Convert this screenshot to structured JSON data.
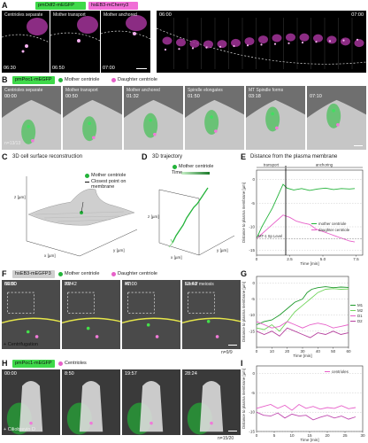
{
  "panels": {
    "A": {
      "label": "A",
      "tags": [
        "pmOdf2-mEGFP",
        "hsEB3-mCherry3"
      ],
      "captions": [
        "Centrioles separate",
        "Mother transport",
        "Mother anchored"
      ],
      "times": [
        "06:30",
        "06:50",
        "07:00"
      ],
      "strip_times": [
        "06:00",
        "07:00"
      ]
    },
    "B": {
      "label": "B",
      "tag": "pmPoc1-mEGFP",
      "legend": [
        "Mother centriole",
        "Daughter centriole"
      ],
      "captions": [
        "Centrioles separate",
        "Mother transport",
        "Mother anchored",
        "Spindle elongates",
        "MT Spindle forms"
      ],
      "times": [
        "00:00",
        "00:50",
        "01:32",
        "01:50",
        "03:18",
        "07:10"
      ],
      "n": "n=13/13"
    },
    "C": {
      "label": "C",
      "title": "3D cell surface reconstruction",
      "legend": [
        "Mother centriole",
        "Closest point on membrane"
      ],
      "axes": [
        "z [µm]",
        "x [µm]",
        "y [µm]"
      ]
    },
    "D": {
      "label": "D",
      "title": "3D trajectory",
      "legend": [
        "Mother centriole"
      ],
      "colorbar": "Time",
      "axes": [
        "z [µm]",
        "x [µm]",
        "y [µm]"
      ]
    },
    "E": {
      "label": "E",
      "title": "Distance from the plasma membrane",
      "phase_labels": [
        "transport",
        "anchoring"
      ],
      "ylabel": "Distance to plasma membrane [µm]",
      "xlabel": "Time [min]",
      "legend": [
        "mother centriole",
        "daughter centriole"
      ],
      "annotation": "MT-1 Sp Level",
      "chart_data": {
        "type": "line",
        "xlim": [
          0,
          8
        ],
        "ylim": [
          -16,
          2
        ],
        "xticks": [
          "0",
          "2.5",
          "5.0",
          "7.5"
        ],
        "yticks": [
          "0",
          "-5",
          "-10",
          "-15"
        ],
        "series": [
          {
            "name": "mother centriole",
            "x": [
              0,
              0.4,
              0.8,
              1.2,
              1.6,
              2.0,
              2.3,
              2.8,
              3.4,
              4.0,
              4.6,
              5.2,
              5.8,
              6.4,
              7.0,
              7.4
            ],
            "y": [
              -12.5,
              -10,
              -8,
              -6,
              -3.5,
              -1,
              -1.8,
              -2.2,
              -1.9,
              -2.3,
              -2.0,
              -1.8,
              -2.1,
              -1.9,
              -2.0,
              -1.9
            ]
          },
          {
            "name": "daughter centriole",
            "x": [
              0,
              0.4,
              0.8,
              1.2,
              1.6,
              2.0,
              2.5,
              3.0,
              3.5,
              4.0,
              4.5,
              5.0,
              5.5,
              6.0,
              6.5,
              7.0,
              7.4
            ],
            "y": [
              -12.5,
              -11.5,
              -10.5,
              -9.5,
              -8.5,
              -7.5,
              -8,
              -8.8,
              -9.2,
              -9.5,
              -10.5,
              -11,
              -11.5,
              -12,
              -12.5,
              -13,
              -13.2
            ]
          }
        ]
      }
    },
    "F": {
      "label": "F",
      "tag": "hsEB3-mEGFP3",
      "legend": [
        "Mother centriole",
        "Daughter centriole"
      ],
      "captions": [
        "NEBD",
        "PM",
        "MII",
        "End of meiosis"
      ],
      "times": [
        "00:00",
        "32:42",
        "47:00",
        "52:42"
      ],
      "side_label": "+ Centrifugation",
      "n": "n=9/9"
    },
    "G": {
      "label": "G",
      "ylabel": "Distance to plasma membrane [µm]",
      "xlabel": "Time [min]",
      "legend": [
        "M1",
        "M2",
        "D1",
        "D2"
      ],
      "chart_data": {
        "type": "line",
        "xlim": [
          0,
          60
        ],
        "ylim": [
          -20,
          2
        ],
        "xticks": [
          "0",
          "10",
          "20",
          "30",
          "40",
          "50",
          "60"
        ],
        "yticks": [
          "0",
          "-5",
          "-10",
          "-15"
        ],
        "series": [
          {
            "name": "M1",
            "x": [
              0,
              5,
              10,
              15,
              20,
              25,
              30,
              33,
              36,
              40,
              45,
              50,
              55,
              60
            ],
            "y": [
              -13,
              -12,
              -11.5,
              -10,
              -8,
              -6,
              -5,
              -3,
              -2,
              -1.5,
              -1.2,
              -1.5,
              -1.3,
              -1.4
            ]
          },
          {
            "name": "M2",
            "x": [
              0,
              5,
              10,
              15,
              20,
              25,
              30,
              35,
              40,
              45,
              50,
              55,
              60
            ],
            "y": [
              -14,
              -14.5,
              -13,
              -15,
              -12,
              -9,
              -7,
              -5,
              -3,
              -2,
              -1.8,
              -2,
              -1.9
            ]
          },
          {
            "name": "D1",
            "x": [
              0,
              5,
              10,
              15,
              20,
              25,
              30,
              35,
              40,
              45,
              50,
              55,
              60
            ],
            "y": [
              -12,
              -13,
              -14,
              -13.5,
              -12,
              -13,
              -14,
              -13,
              -12.5,
              -13,
              -14,
              -13.5,
              -13
            ]
          },
          {
            "name": "D2",
            "x": [
              0,
              5,
              10,
              15,
              20,
              25,
              30,
              35,
              40,
              45,
              50,
              55,
              60
            ],
            "y": [
              -15,
              -16,
              -15,
              -16.5,
              -14,
              -15,
              -16,
              -17,
              -15.5,
              -16,
              -15,
              -16,
              -15.5
            ]
          }
        ]
      }
    },
    "H": {
      "label": "H",
      "tag": "pmPoc1-mEGFP",
      "legend": [
        "Centrioles"
      ],
      "times": [
        "00:00",
        "8:50",
        "19:57",
        "28:24"
      ],
      "side_label": "+ Ciliobrevin D",
      "n": "n=15/20"
    },
    "I": {
      "label": "I",
      "ylabel": "Distance to plasma membrane [µm]",
      "xlabel": "Time [min]",
      "legend": [
        "centrioles"
      ],
      "chart_data": {
        "type": "line",
        "xlim": [
          0,
          30
        ],
        "ylim": [
          -15,
          2
        ],
        "xticks": [
          "0",
          "5",
          "10",
          "15",
          "20",
          "25",
          "30"
        ],
        "yticks": [
          "0",
          "-5",
          "-10",
          "-15"
        ],
        "series": [
          {
            "name": "centriole 1",
            "x": [
              0,
              2,
              4,
              6,
              8,
              10,
              12,
              14,
              16,
              18,
              20,
              22,
              24,
              26,
              28
            ],
            "y": [
              -9,
              -8.5,
              -8,
              -9,
              -8.2,
              -9.5,
              -8,
              -9,
              -8.5,
              -9.2,
              -8.8,
              -9,
              -8.3,
              -9.1,
              -8.8
            ]
          },
          {
            "name": "centriole 2",
            "x": [
              0,
              2,
              4,
              6,
              8,
              10,
              12,
              14,
              16,
              18,
              20,
              22,
              24,
              26,
              28
            ],
            "y": [
              -10,
              -10.8,
              -11,
              -10.2,
              -11.5,
              -10.5,
              -11,
              -10.8,
              -12,
              -11.3,
              -10.8,
              -11.5,
              -11,
              -11.8,
              -11.2
            ]
          }
        ]
      }
    }
  },
  "colors": {
    "green": "#23b33a",
    "pink": "#e760c9",
    "tag_green": "#3fd94a",
    "tag_pink": "#f06fd6"
  }
}
